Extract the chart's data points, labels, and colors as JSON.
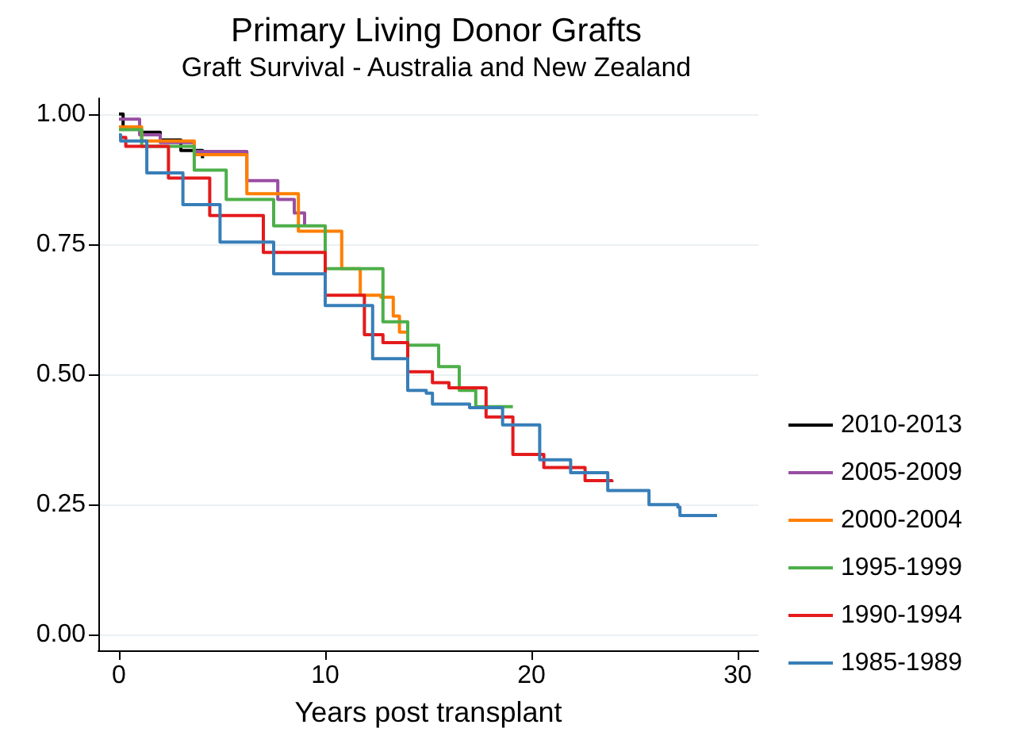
{
  "chart_data": {
    "type": "step",
    "title": "Primary Living Donor Grafts",
    "subtitle": "Graft Survival - Australia and New Zealand",
    "xlabel": "Years post transplant",
    "xlim": [
      -1,
      31
    ],
    "xticks": [
      0,
      10,
      20,
      30
    ],
    "ylim": [
      -0.03,
      1.03
    ],
    "yticks": [
      {
        "value": 0,
        "label": "0.00"
      },
      {
        "value": 0.25,
        "label": "0.25"
      },
      {
        "value": 0.5,
        "label": "0.50"
      },
      {
        "value": 0.75,
        "label": "0.75"
      },
      {
        "value": 1,
        "label": "1.00"
      }
    ],
    "grid": "y",
    "legend": "right",
    "marker": "none",
    "line_style": "solid",
    "series": [
      {
        "name": "2010-2013",
        "color": "#000000",
        "x": [
          0,
          0.2,
          1,
          2,
          3,
          4.05
        ],
        "values": [
          1.0,
          0.975,
          0.965,
          0.95,
          0.93,
          0.915
        ]
      },
      {
        "name": "2005-2009",
        "color": "#984ea3",
        "x": [
          0,
          1,
          2,
          3.65,
          6.2,
          7.7,
          8.5,
          9.0
        ],
        "values": [
          0.99,
          0.96,
          0.945,
          0.928,
          0.872,
          0.836,
          0.81,
          0.787
        ]
      },
      {
        "name": "2000-2004",
        "color": "#ff7f00",
        "x": [
          0,
          1.1,
          3.65,
          6.2,
          8.7,
          10.8,
          11.7,
          12.7,
          13.3,
          13.6,
          13.98
        ],
        "values": [
          0.975,
          0.948,
          0.922,
          0.847,
          0.775,
          0.703,
          0.652,
          0.648,
          0.612,
          0.581,
          0.581
        ]
      },
      {
        "name": "1995-1999",
        "color": "#4daf4a",
        "x": [
          0,
          1.1,
          3.65,
          5.2,
          7.5,
          10.0,
          12.8,
          14.0,
          15.5,
          16.5,
          17.3,
          19.1
        ],
        "values": [
          0.97,
          0.938,
          0.892,
          0.836,
          0.785,
          0.703,
          0.601,
          0.556,
          0.515,
          0.469,
          0.438,
          0.438
        ]
      },
      {
        "name": "1990-1994",
        "color": "#e41a1c",
        "x": [
          0,
          0.33,
          2.4,
          4.4,
          7.0,
          10.0,
          11.9,
          12.8,
          14.0,
          15.2,
          16.0,
          17.8,
          19.1,
          20.6,
          22.6,
          23.9
        ],
        "values": [
          0.955,
          0.938,
          0.877,
          0.805,
          0.734,
          0.652,
          0.576,
          0.561,
          0.505,
          0.484,
          0.474,
          0.418,
          0.346,
          0.321,
          0.296,
          0.293
        ]
      },
      {
        "name": "1985-1989",
        "color": "#377eb8",
        "x": [
          0,
          0.08,
          1.35,
          3.1,
          4.9,
          7.5,
          10.0,
          12.3,
          14.0,
          14.9,
          15.2,
          17.0,
          18.6,
          20.4,
          21.9,
          23.7,
          25.7,
          27.1,
          27.2,
          29.0
        ],
        "values": [
          0.96,
          0.948,
          0.887,
          0.826,
          0.754,
          0.693,
          0.632,
          0.53,
          0.469,
          0.464,
          0.443,
          0.436,
          0.403,
          0.336,
          0.311,
          0.277,
          0.25,
          0.245,
          0.229,
          0.229
        ]
      }
    ]
  }
}
